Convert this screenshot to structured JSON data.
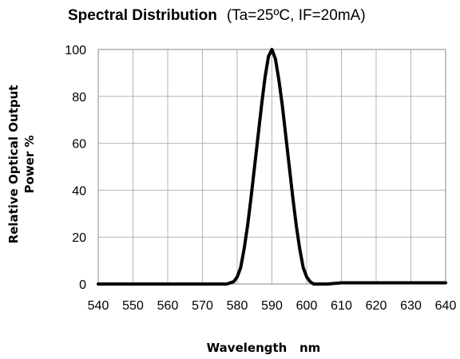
{
  "chart_data": {
    "type": "line",
    "title": "Spectral   Distribution",
    "subtitle": "(Ta=25ºC, IF=20mA)",
    "xlabel": "Wavelength   nm",
    "ylabel_line1": "Relative Optical Output",
    "ylabel_line2": "Power  %",
    "xlim": [
      540,
      640
    ],
    "ylim": [
      0,
      100
    ],
    "xticks": [
      540,
      550,
      560,
      570,
      580,
      590,
      600,
      610,
      620,
      630,
      640
    ],
    "yticks": [
      0,
      20,
      40,
      60,
      80,
      100
    ],
    "grid": true,
    "series": [
      {
        "x": [
          540,
          570,
          574,
          577,
          579,
          580,
          581,
          582,
          583,
          584,
          585,
          586,
          587,
          588,
          589,
          590,
          591,
          592,
          593,
          594,
          595,
          596,
          597,
          598,
          599,
          600,
          601,
          602,
          604,
          606,
          610,
          640
        ],
        "y": [
          0,
          0,
          0,
          0,
          1,
          3,
          7,
          15,
          25,
          37,
          50,
          63,
          76,
          88,
          97,
          100,
          96,
          87,
          76,
          63,
          50,
          37,
          25,
          15,
          7,
          3,
          1,
          0,
          0,
          0,
          0.5,
          0.5
        ],
        "color": "#000000"
      }
    ]
  }
}
